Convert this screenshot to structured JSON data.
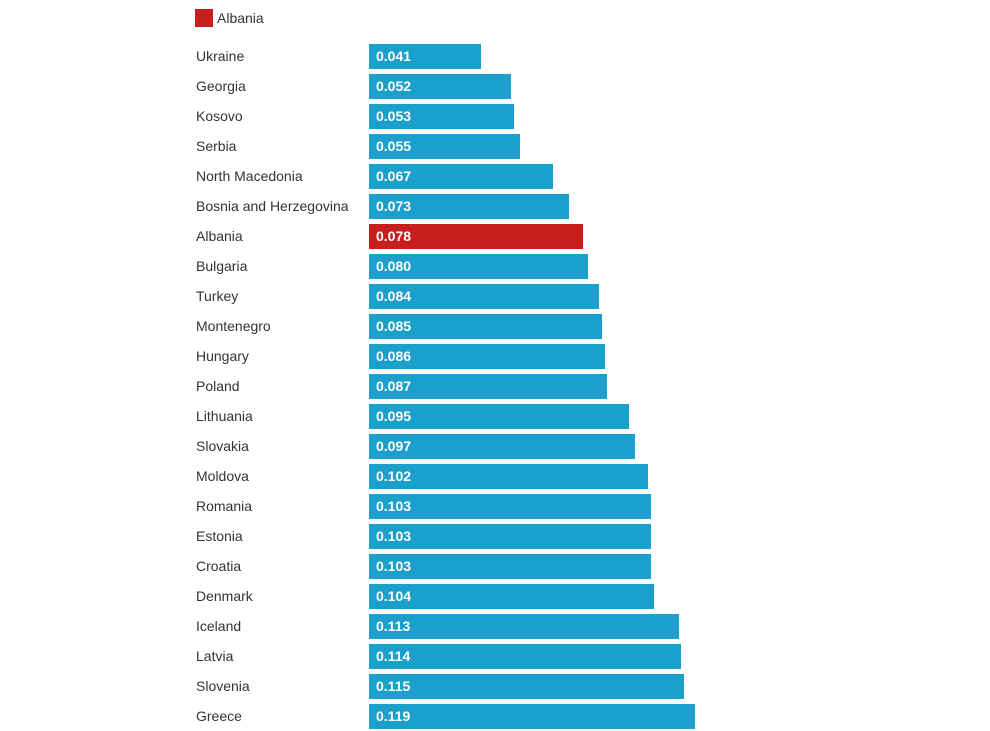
{
  "chart_data": {
    "type": "bar",
    "orientation": "horizontal",
    "title": "",
    "xlabel": "",
    "ylabel": "",
    "xlim": [
      0,
      0.119
    ],
    "grid": false,
    "legend": {
      "position": "top-left",
      "entries": [
        {
          "label": "Albania",
          "color": "#c81e1e"
        }
      ]
    },
    "default_color": "#1b9fcb",
    "highlight_color": "#c81e1e",
    "highlight_category": "Albania",
    "categories": [
      "Ukraine",
      "Georgia",
      "Kosovo",
      "Serbia",
      "North Macedonia",
      "Bosnia and Herzegovina",
      "Albania",
      "Bulgaria",
      "Turkey",
      "Montenegro",
      "Hungary",
      "Poland",
      "Lithuania",
      "Slovakia",
      "Moldova",
      "Romania",
      "Estonia",
      "Croatia",
      "Denmark",
      "Iceland",
      "Latvia",
      "Slovenia",
      "Greece"
    ],
    "values": [
      0.041,
      0.052,
      0.053,
      0.055,
      0.067,
      0.073,
      0.078,
      0.08,
      0.084,
      0.085,
      0.086,
      0.087,
      0.095,
      0.097,
      0.102,
      0.103,
      0.103,
      0.103,
      0.104,
      0.113,
      0.114,
      0.115,
      0.119
    ],
    "value_labels": [
      "0.041",
      "0.052",
      "0.053",
      "0.055",
      "0.067",
      "0.073",
      "0.078",
      "0.080",
      "0.084",
      "0.085",
      "0.086",
      "0.087",
      "0.095",
      "0.097",
      "0.102",
      "0.103",
      "0.103",
      "0.103",
      "0.104",
      "0.113",
      "0.114",
      "0.115",
      "0.119"
    ]
  }
}
